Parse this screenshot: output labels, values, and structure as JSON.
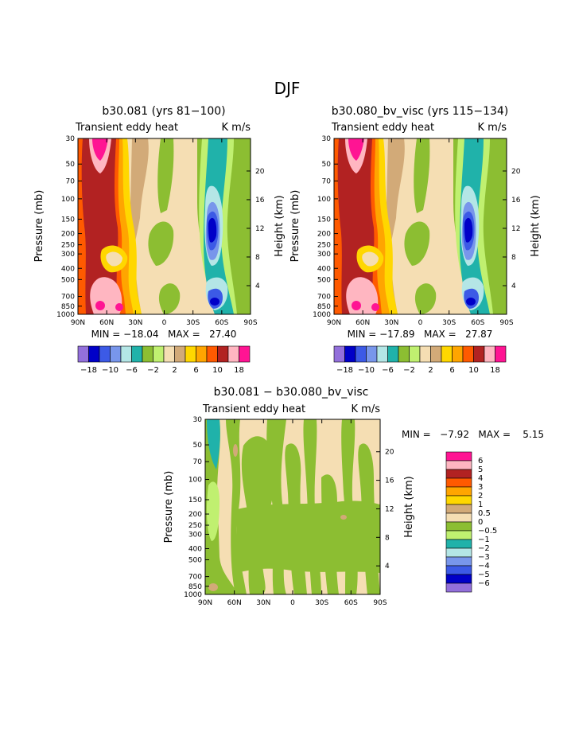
{
  "page_title": "DJF",
  "colors": {
    "c_m18": "#9370db",
    "c_m14": "#0000c8",
    "c_m10": "#3c5ae6",
    "c_m8": "#7896eb",
    "c_m6": "#b4e6e6",
    "c_m4": "#20b2aa",
    "c_m2": "#8cbe32",
    "c_m1": "#c0f070",
    "c_0": "#f5deb3",
    "c_2": "#d2aa78",
    "c_4": "#ffd700",
    "c_6": "#ffa500",
    "c_8": "#ff5a00",
    "c_10": "#b22222",
    "c_14": "#ffb6c1",
    "c_18": "#ff1493"
  },
  "chart_data": [
    {
      "type": "heatmap",
      "title": "b30.081 (yrs 81−100)",
      "left_label": "Transient eddy heat",
      "right_label": "K m/s",
      "xlabel": "",
      "ylabel": "Pressure (mb)",
      "y2label": "Height (km)",
      "xticks": [
        "90N",
        "60N",
        "30N",
        "0",
        "30S",
        "60S",
        "90S"
      ],
      "yticks": [
        30,
        50,
        70,
        100,
        150,
        200,
        250,
        300,
        400,
        500,
        700,
        850,
        1000
      ],
      "y2ticks": [
        20,
        16,
        12,
        8,
        4
      ],
      "y_scale": "log",
      "stats": "MIN = −18.04   MAX =   27.40",
      "min": -18.04,
      "max": 27.4,
      "colorbar_labels": [
        "−18",
        "−10",
        "−6",
        "−2",
        "2",
        "6",
        "10",
        "18"
      ],
      "colorbar_levels": [
        -18,
        -14,
        -10,
        -8,
        -6,
        -4,
        -2,
        -1,
        0,
        2,
        4,
        6,
        8,
        10,
        14,
        18
      ]
    },
    {
      "type": "heatmap",
      "title": "b30.080_bv_visc (yrs 115−134)",
      "left_label": "Transient eddy heat",
      "right_label": "K m/s",
      "xlabel": "",
      "ylabel": "Pressure (mb)",
      "y2label": "Height (km)",
      "xticks": [
        "90N",
        "60N",
        "30N",
        "0",
        "30S",
        "60S",
        "90S"
      ],
      "yticks": [
        30,
        50,
        70,
        100,
        150,
        200,
        250,
        300,
        400,
        500,
        700,
        850,
        1000
      ],
      "y2ticks": [
        20,
        16,
        12,
        8,
        4
      ],
      "y_scale": "log",
      "stats": "MIN = −17.89   MAX =   27.87",
      "min": -17.89,
      "max": 27.87,
      "colorbar_labels": [
        "−18",
        "−10",
        "−6",
        "−2",
        "2",
        "6",
        "10",
        "18"
      ],
      "colorbar_levels": [
        -18,
        -14,
        -10,
        -8,
        -6,
        -4,
        -2,
        -1,
        0,
        2,
        4,
        6,
        8,
        10,
        14,
        18
      ]
    },
    {
      "type": "heatmap",
      "title": "b30.081 − b30.080_bv_visc",
      "left_label": "Transient eddy heat",
      "right_label": "K m/s",
      "xlabel": "",
      "ylabel": "Pressure (mb)",
      "y2label": "Height (km)",
      "xticks": [
        "90N",
        "60N",
        "30N",
        "0",
        "30S",
        "60S",
        "90S"
      ],
      "yticks": [
        30,
        50,
        70,
        100,
        150,
        200,
        250,
        300,
        400,
        500,
        700,
        850,
        1000
      ],
      "y2ticks": [
        20,
        16,
        12,
        8,
        4
      ],
      "y_scale": "log",
      "stats": "MIN =   −7.92   MAX =    5.15",
      "min": -7.92,
      "max": 5.15,
      "colorbar_labels": [
        "6",
        "5",
        "4",
        "3",
        "2",
        "1",
        "0.5",
        "0",
        "−0.5",
        "−1",
        "−2",
        "−3",
        "−4",
        "−5",
        "−6"
      ],
      "colorbar_levels": [
        6,
        5,
        4,
        3,
        2,
        1,
        0.5,
        0,
        -0.5,
        -1,
        -2,
        -3,
        -4,
        -5,
        -6
      ]
    }
  ]
}
